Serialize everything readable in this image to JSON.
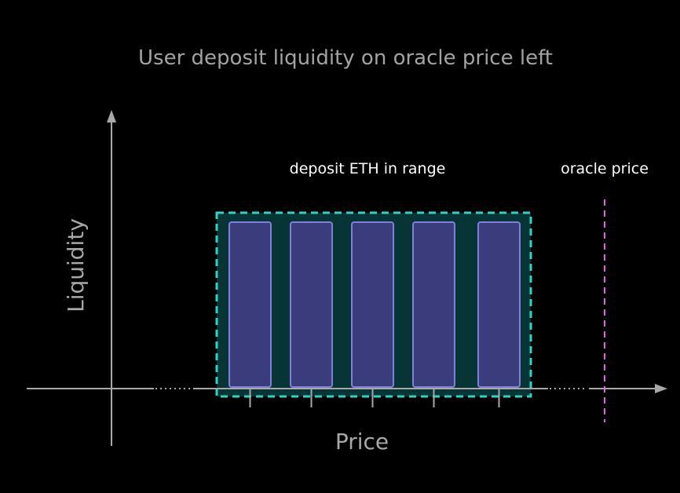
{
  "diagram": {
    "title": "User deposit liquidity on oracle price left",
    "y_axis_label": "Liquidity",
    "x_axis_label": "Price",
    "range_label": "deposit ETH in range",
    "oracle_label": "oracle price",
    "liquidity_bar_count": 5,
    "colors": {
      "background": "#000000",
      "axis": "#a8a8a8",
      "range_fill": "#073535",
      "range_border": "#2fd3c5",
      "bar_fill": "#3b3c7c",
      "bar_border": "#7f80d8",
      "oracle_line": "#e85ce8",
      "title_text": "#a3a3a3",
      "note_text": "#ffffff"
    }
  }
}
